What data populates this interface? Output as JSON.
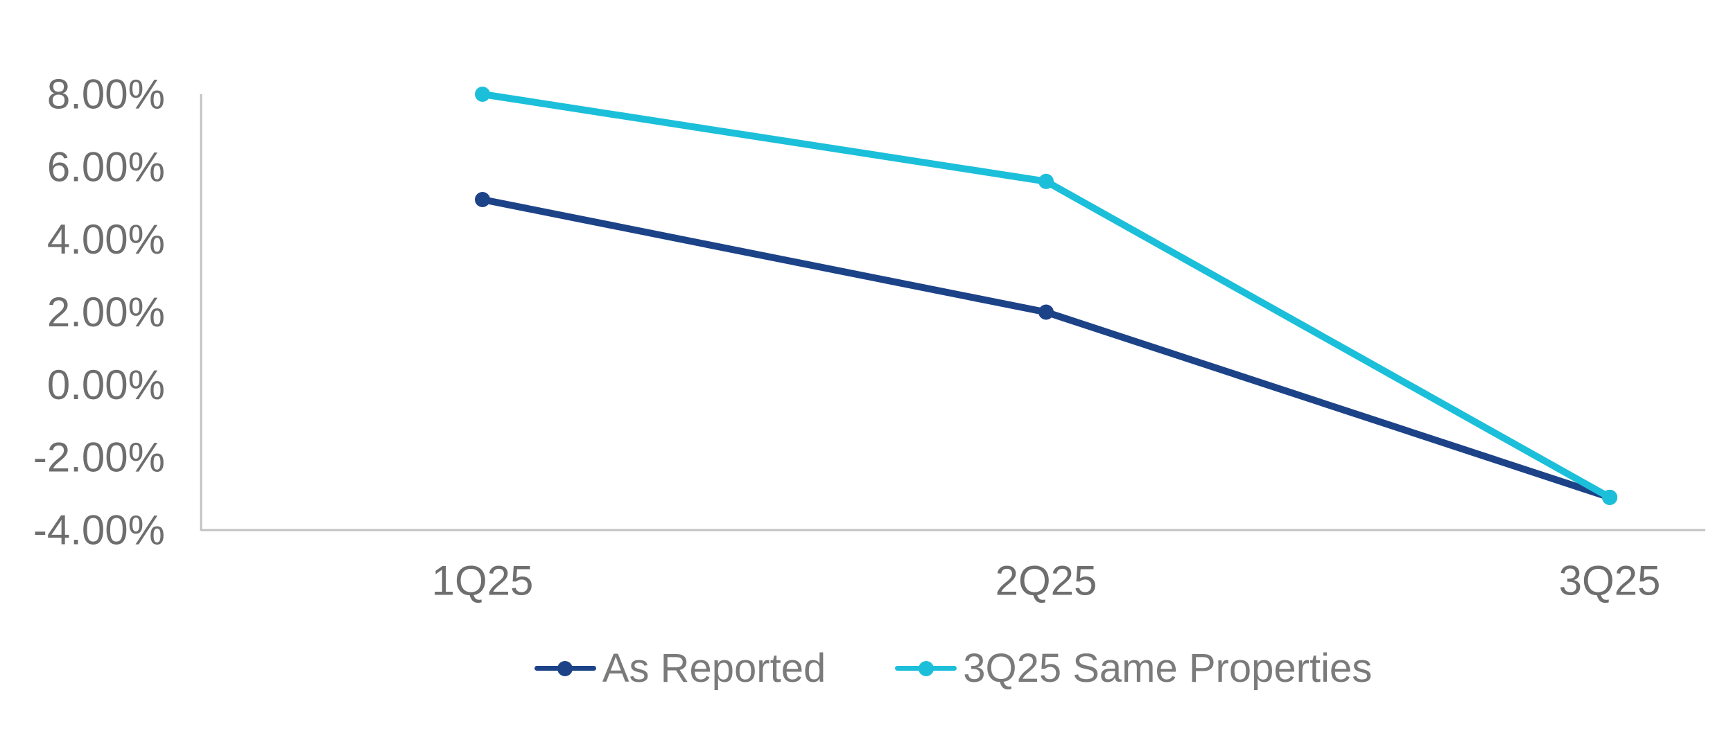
{
  "chart_data": {
    "type": "line",
    "title": "",
    "categories": [
      "1Q25",
      "2Q25",
      "3Q25"
    ],
    "series": [
      {
        "name": "As Reported",
        "color": "#1C4287",
        "values": [
          5.1,
          2.0,
          -3.1
        ]
      },
      {
        "name": "3Q25 Same Properties",
        "color": "#1BBFD9",
        "values": [
          8.0,
          5.6,
          -3.1
        ]
      }
    ],
    "y_axis": {
      "min": -4,
      "max": 8,
      "step": 2,
      "tick_labels": [
        "8.00%",
        "6.00%",
        "4.00%",
        "2.00%",
        "0.00%",
        "-2.00%",
        "-4.00%"
      ],
      "tick_values": [
        8,
        6,
        4,
        2,
        0,
        -2,
        -4
      ]
    },
    "x_axis": {
      "tick_labels": [
        "1Q25",
        "2Q25",
        "3Q25"
      ]
    },
    "grid": false,
    "legend_position": "bottom",
    "markers": true,
    "colors": {
      "axis_line": "#C2C2C2",
      "axis_text": "#6E6E6E",
      "legend_text": "#7A7A7A",
      "background": "#FFFFFF"
    }
  }
}
